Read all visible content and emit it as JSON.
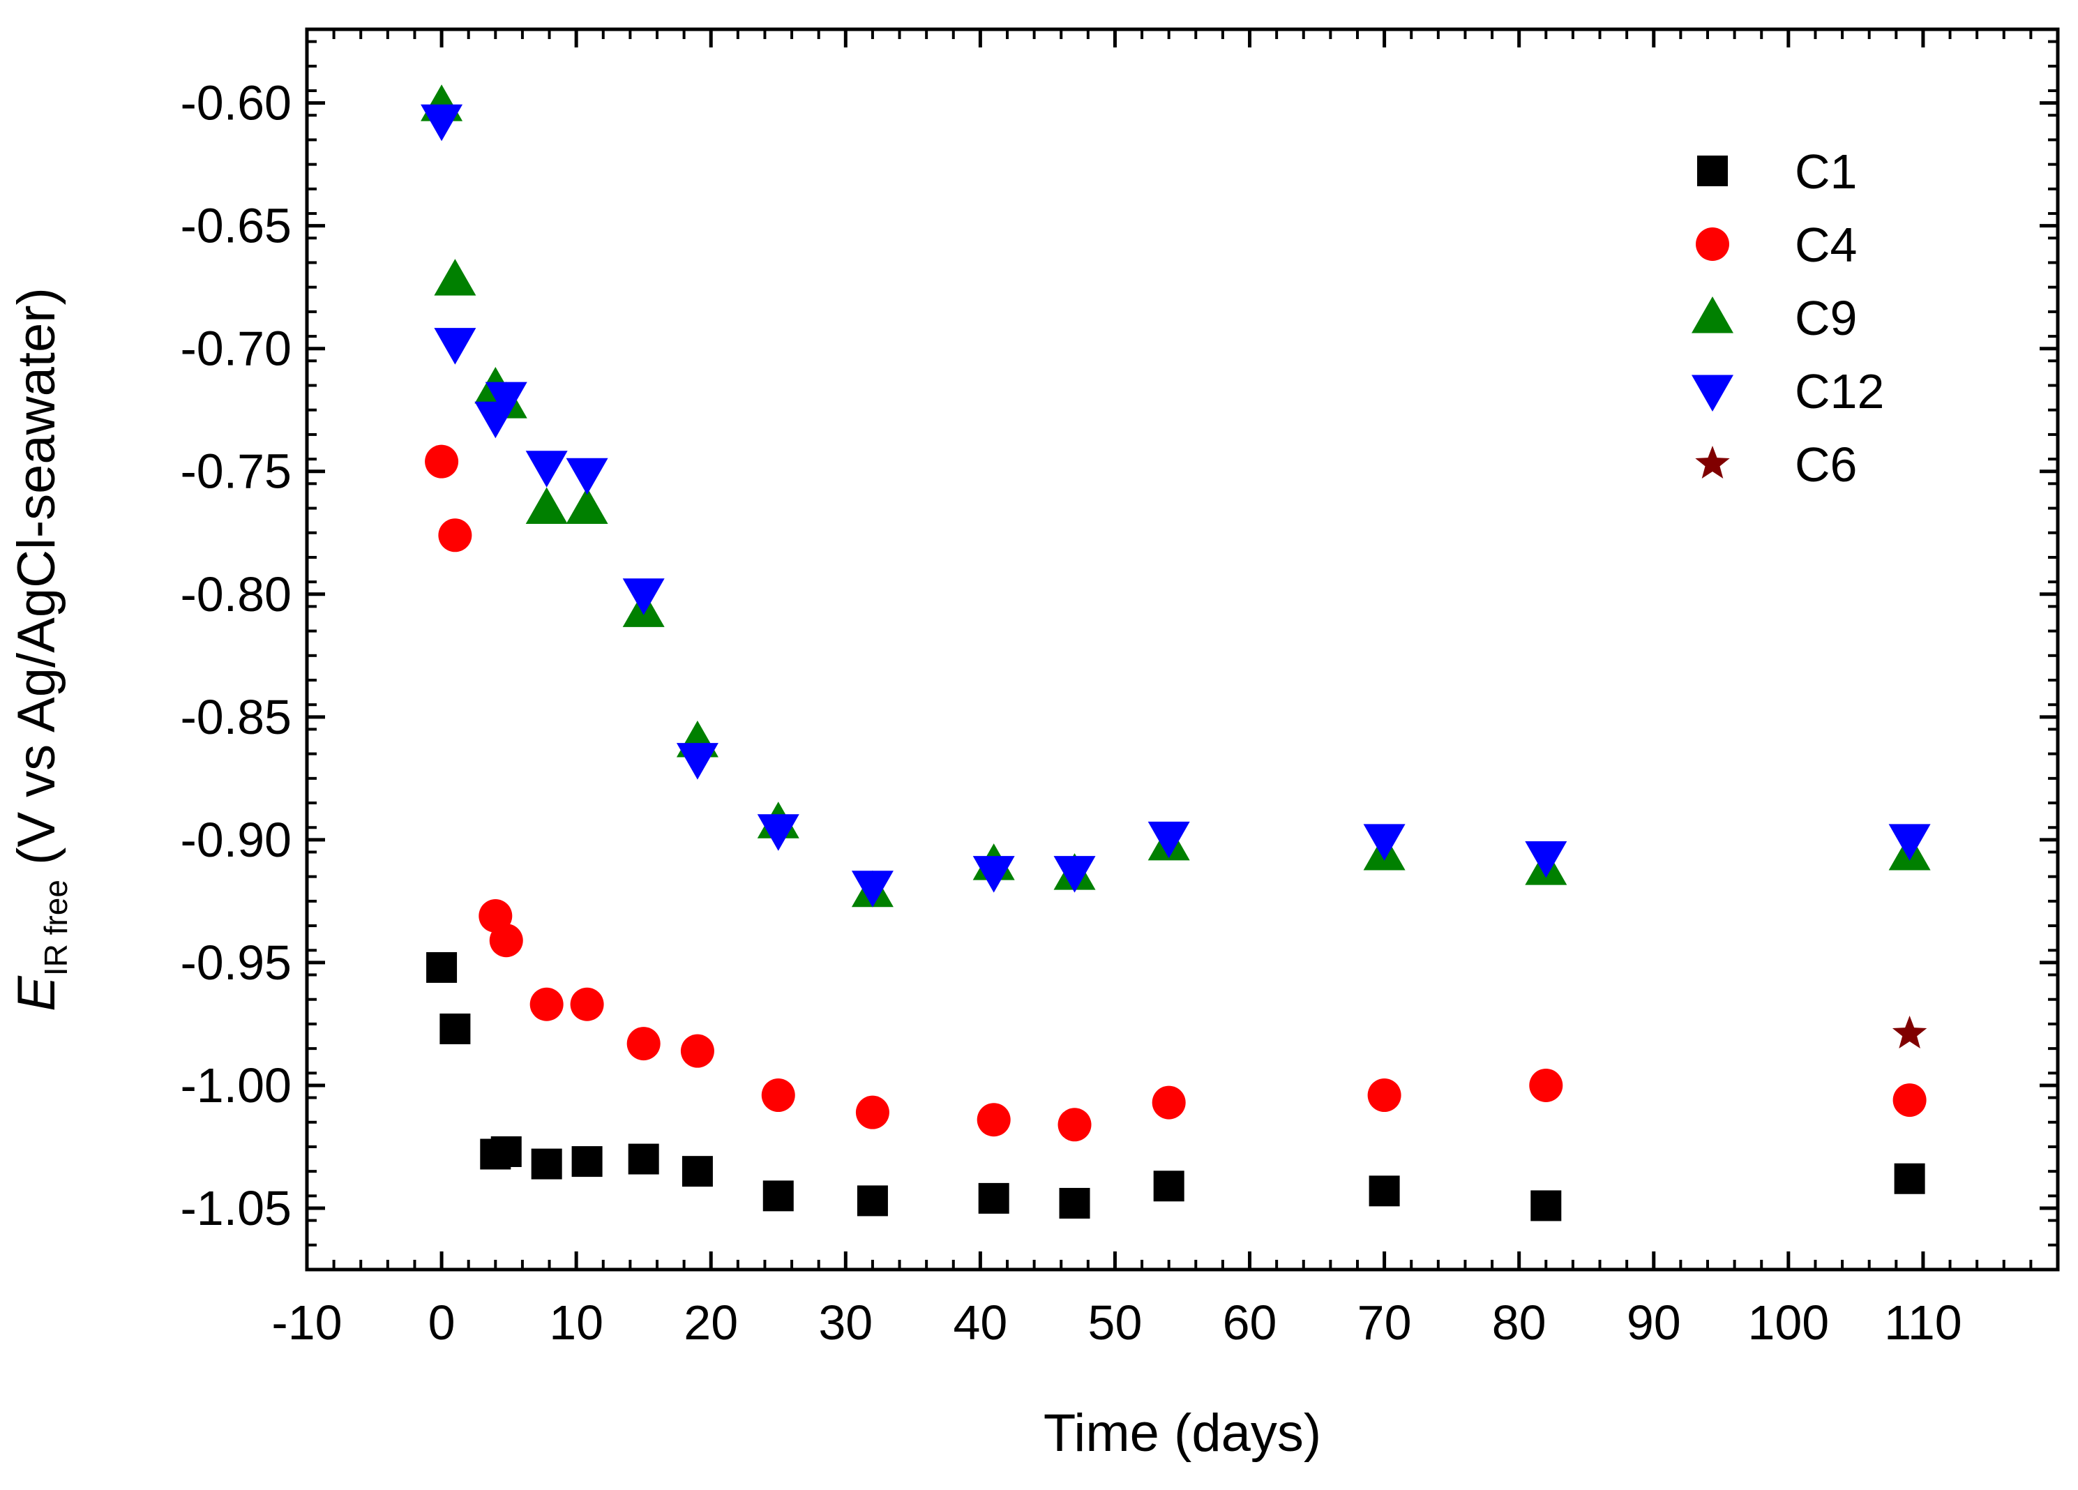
{
  "chart_data": {
    "type": "scatter",
    "xlabel": "Time (days)",
    "ylabel": {
      "symbol": "E",
      "subscript": "IR free",
      "rest": " (V vs Ag/AgCl-seawater)"
    },
    "xlim": [
      -10,
      120
    ],
    "ylim": [
      -1.075,
      -0.57
    ],
    "x_ticks": [
      -10,
      0,
      10,
      20,
      30,
      40,
      50,
      60,
      70,
      80,
      90,
      100,
      110
    ],
    "y_ticks": [
      -1.05,
      -1.0,
      -0.95,
      -0.9,
      -0.85,
      -0.8,
      -0.75,
      -0.7,
      -0.65,
      -0.6
    ],
    "legend_position": "top-right",
    "series": [
      {
        "name": "C1",
        "marker": "square",
        "color": "#000000",
        "x": [
          0,
          1,
          4,
          4.8,
          7.8,
          10.8,
          15,
          19,
          25,
          32,
          41,
          47,
          54,
          70,
          82,
          109
        ],
        "y": [
          -0.952,
          -0.977,
          -1.028,
          -1.027,
          -1.032,
          -1.031,
          -1.03,
          -1.035,
          -1.045,
          -1.047,
          -1.046,
          -1.048,
          -1.041,
          -1.043,
          -1.049,
          -1.038
        ]
      },
      {
        "name": "C4",
        "marker": "circle",
        "color": "#ff0000",
        "x": [
          0,
          1,
          4,
          4.8,
          7.8,
          10.8,
          15,
          19,
          25,
          32,
          41,
          47,
          54,
          70,
          82,
          109
        ],
        "y": [
          -0.746,
          -0.776,
          -0.931,
          -0.941,
          -0.967,
          -0.967,
          -0.983,
          -0.986,
          -1.004,
          -1.011,
          -1.014,
          -1.016,
          -1.007,
          -1.004,
          -1.0,
          -1.006
        ]
      },
      {
        "name": "C9",
        "marker": "triangle-up",
        "color": "#008000",
        "x": [
          0,
          1,
          4,
          4.8,
          7.8,
          10.8,
          15,
          19,
          25,
          32,
          41,
          47,
          54,
          70,
          82,
          109
        ],
        "y": [
          -0.601,
          -0.672,
          -0.716,
          -0.722,
          -0.765,
          -0.765,
          -0.807,
          -0.86,
          -0.893,
          -0.921,
          -0.91,
          -0.914,
          -0.902,
          -0.906,
          -0.912,
          -0.906
        ]
      },
      {
        "name": "C12",
        "marker": "triangle-down",
        "color": "#0000ff",
        "x": [
          0,
          1,
          4,
          4.8,
          7.8,
          10.8,
          15,
          19,
          25,
          32,
          41,
          47,
          54,
          70,
          82,
          109
        ],
        "y": [
          -0.607,
          -0.698,
          -0.728,
          -0.72,
          -0.748,
          -0.751,
          -0.8,
          -0.867,
          -0.896,
          -0.919,
          -0.913,
          -0.913,
          -0.899,
          -0.9,
          -0.907,
          -0.9
        ]
      },
      {
        "name": "C6",
        "marker": "star",
        "color": "#800000",
        "x": [
          109
        ],
        "y": [
          -0.979
        ]
      }
    ]
  }
}
